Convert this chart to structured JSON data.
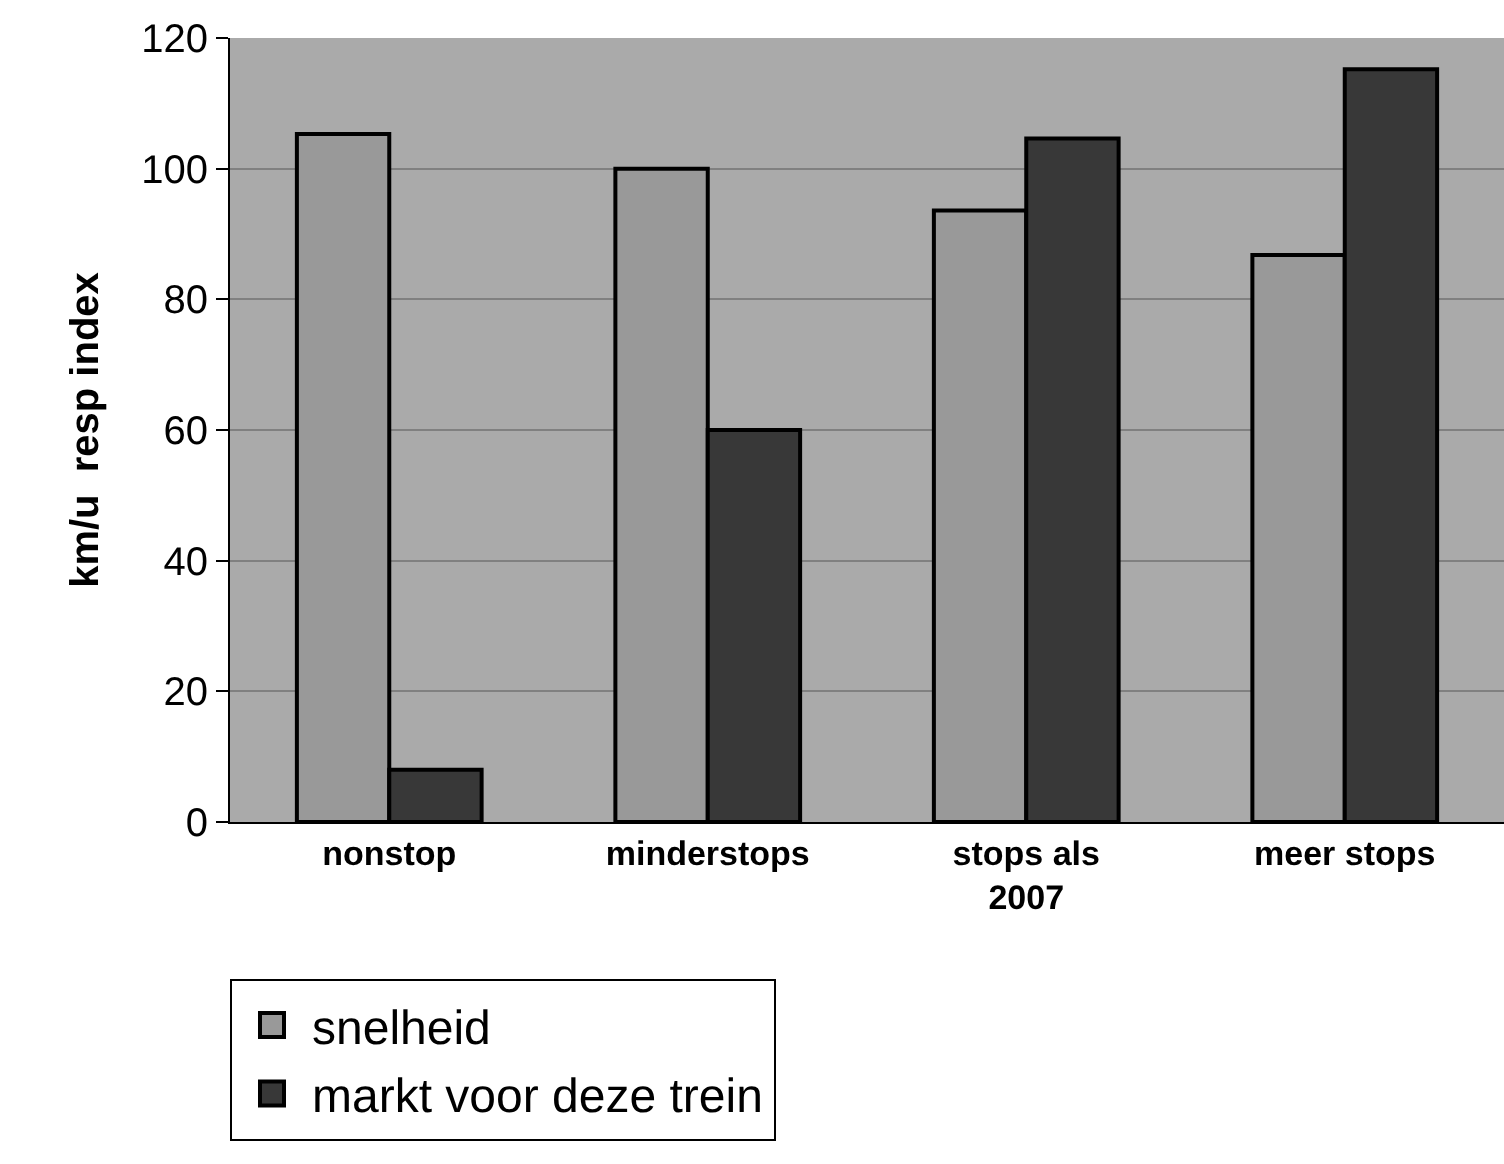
{
  "chart_data": {
    "type": "bar",
    "ylabel": "km/u  resp index",
    "categories": [
      "nonstop",
      "minderstops",
      "stops als\n2007",
      "meer stops"
    ],
    "series": [
      {
        "name": "snelheid",
        "color": "#999999",
        "values": [
          105.3,
          100,
          93.6,
          86.8
        ]
      },
      {
        "name": "markt voor deze trein",
        "color": "#383838",
        "values": [
          8,
          60,
          104.6,
          115.2
        ]
      }
    ],
    "ylim": [
      0,
      120
    ],
    "yticks": [
      0,
      20,
      40,
      60,
      80,
      100,
      120
    ],
    "grid": "y",
    "legend": "bottom left"
  }
}
